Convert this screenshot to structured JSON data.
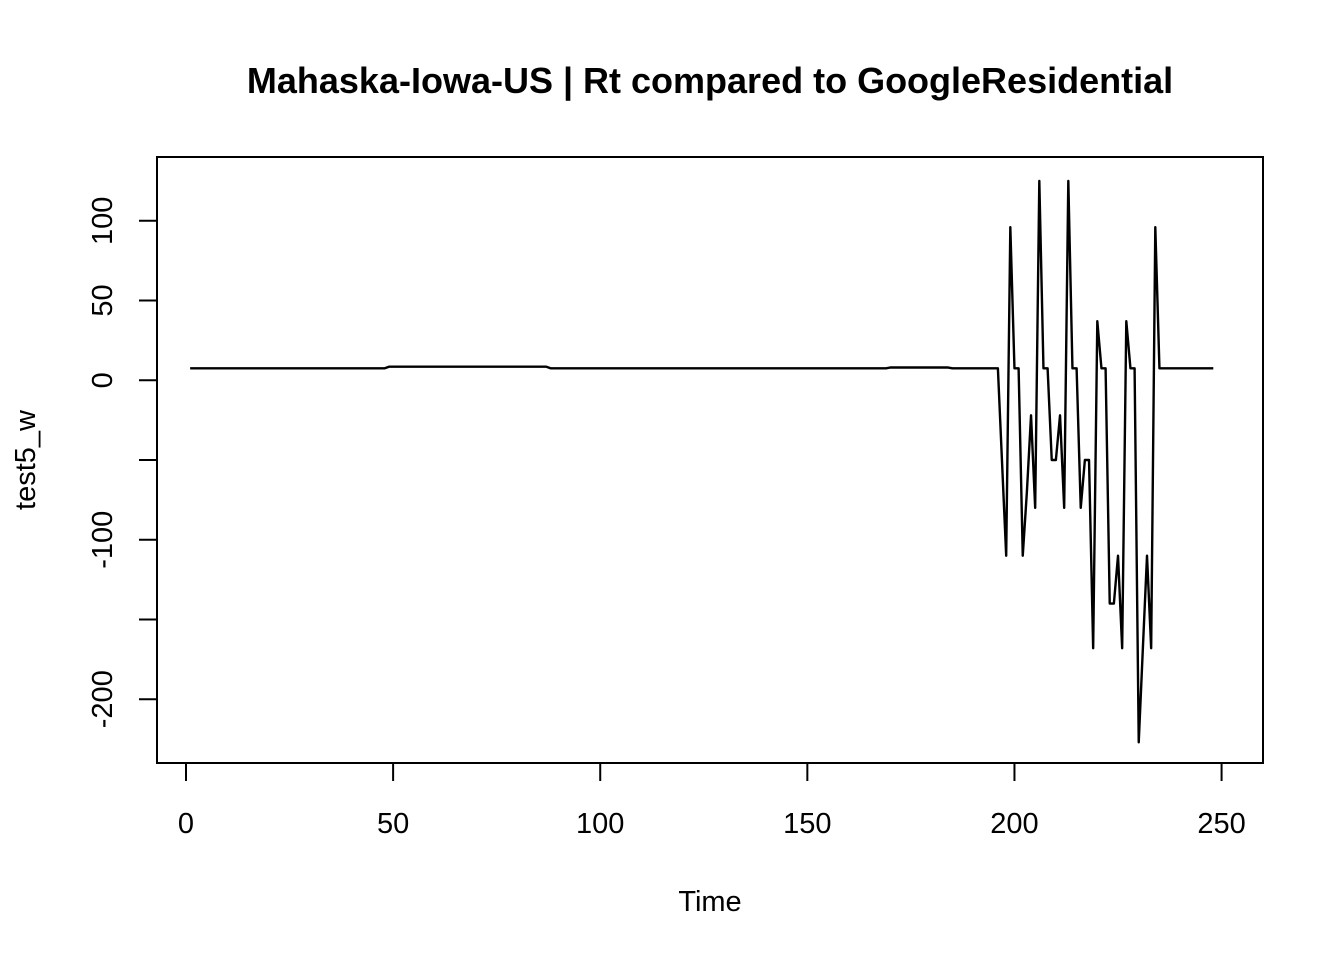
{
  "chart_data": {
    "type": "line",
    "title": "Mahaska-Iowa-US | Rt compared to GoogleResidential",
    "xlabel": "Time",
    "ylabel": "test5_w",
    "xlim": [
      -7,
      260
    ],
    "ylim": [
      -240,
      140
    ],
    "x_ticks": [
      0,
      50,
      100,
      150,
      200,
      250
    ],
    "x_tick_labels": [
      "0",
      "50",
      "100",
      "150",
      "200",
      "250"
    ],
    "y_ticks": [
      -200,
      -150,
      -100,
      -50,
      0,
      50,
      100
    ],
    "y_tick_labels": [
      "-200",
      "",
      "-100",
      "",
      "0",
      "50",
      "100"
    ],
    "grid": false,
    "legend": "none",
    "series": [
      {
        "color": "#000000",
        "points": [
          [
            1,
            7.5
          ],
          [
            48,
            7.5
          ],
          [
            49,
            8.5
          ],
          [
            87,
            8.5
          ],
          [
            88,
            7.5
          ],
          [
            169,
            7.5
          ],
          [
            170,
            8.0
          ],
          [
            184,
            8.0
          ],
          [
            185,
            7.5
          ],
          [
            196,
            7.5
          ],
          [
            198,
            -110
          ],
          [
            199,
            96
          ],
          [
            200,
            7.5
          ],
          [
            201,
            7.5
          ],
          [
            202,
            -110
          ],
          [
            203,
            -70
          ],
          [
            204,
            -22
          ],
          [
            205,
            -80
          ],
          [
            206,
            125
          ],
          [
            207,
            7.5
          ],
          [
            208,
            7.5
          ],
          [
            209,
            -50
          ],
          [
            210,
            -50
          ],
          [
            211,
            -22
          ],
          [
            212,
            -80
          ],
          [
            213,
            125
          ],
          [
            214,
            7.5
          ],
          [
            215,
            7.5
          ],
          [
            216,
            -80
          ],
          [
            217,
            -50
          ],
          [
            218,
            -50
          ],
          [
            219,
            -168
          ],
          [
            220,
            37
          ],
          [
            221,
            7.5
          ],
          [
            222,
            7.5
          ],
          [
            223,
            -140
          ],
          [
            224,
            -140
          ],
          [
            225,
            -110
          ],
          [
            226,
            -168
          ],
          [
            227,
            37
          ],
          [
            228,
            7.5
          ],
          [
            229,
            7.5
          ],
          [
            230,
            -227
          ],
          [
            231,
            -168
          ],
          [
            232,
            -110
          ],
          [
            233,
            -168
          ],
          [
            234,
            96
          ],
          [
            235,
            7.5
          ],
          [
            236,
            7.5
          ],
          [
            248,
            7.5
          ]
        ]
      }
    ]
  }
}
